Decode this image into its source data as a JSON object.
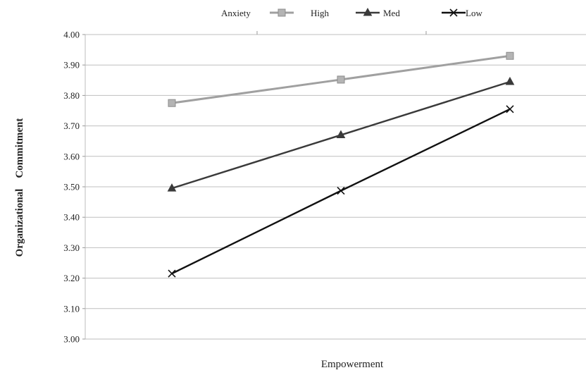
{
  "chart_data": {
    "type": "line",
    "xlabel": "Empowerment",
    "ylabel": "Organizational    Commitment",
    "ylim": [
      3.0,
      4.0
    ],
    "y_ticks": [
      "3.00",
      "3.10",
      "3.20",
      "3.30",
      "3.40",
      "3.50",
      "3.60",
      "3.70",
      "3.80",
      "3.90",
      "4.00"
    ],
    "x_points": 3,
    "grid": "horizontal",
    "legend": {
      "title": "Anxiety",
      "position": "top"
    },
    "series": [
      {
        "name": "High",
        "values": [
          3.775,
          3.852,
          3.93
        ],
        "color": "#a0a0a0",
        "marker": "square"
      },
      {
        "name": "Med",
        "values": [
          3.495,
          3.67,
          3.845
        ],
        "color": "#3a3a3a",
        "marker": "triangle"
      },
      {
        "name": "Low",
        "values": [
          3.215,
          3.487,
          3.755
        ],
        "color": "#111111",
        "marker": "x"
      }
    ]
  }
}
